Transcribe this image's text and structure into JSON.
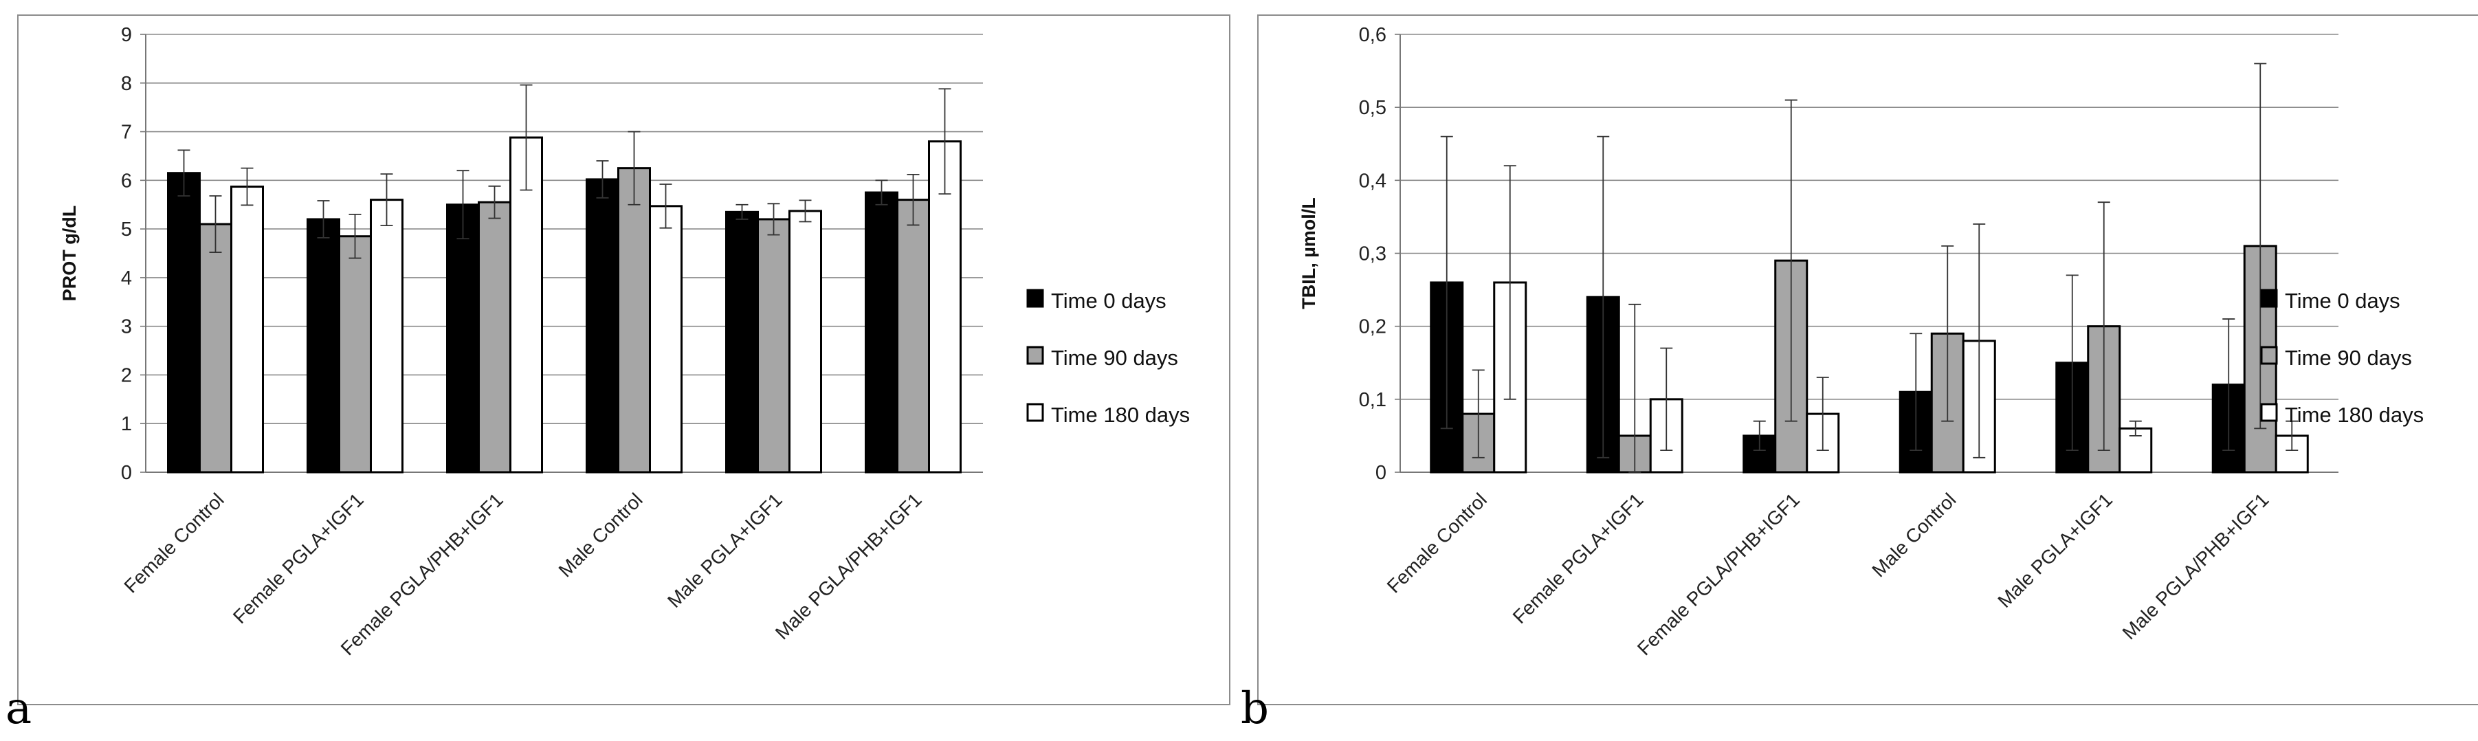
{
  "panels": {
    "a": {
      "label": "a"
    },
    "b": {
      "label": "b"
    }
  },
  "chart_data": [
    {
      "id": "a",
      "type": "bar",
      "title": "",
      "xlabel": "",
      "ylabel": "PROT g/dL",
      "ylim": [
        0,
        9
      ],
      "yticks": [
        0,
        1,
        2,
        3,
        4,
        5,
        6,
        7,
        8,
        9
      ],
      "ytick_labels": [
        "0",
        "1",
        "2",
        "3",
        "4",
        "5",
        "6",
        "7",
        "8",
        "9"
      ],
      "grid": true,
      "legend_position": "right",
      "categories": [
        "Female Control",
        "Female PGLA+IGF1",
        "Female PGLA/PHB+IGF1",
        "Male Control",
        "Male PGLA+IGF1",
        "Male PGLA/PHB+IGF1"
      ],
      "series": [
        {
          "name": "Time 0 days",
          "color": "#000000",
          "values": [
            6.15,
            5.2,
            5.5,
            6.02,
            5.35,
            5.75
          ],
          "errors": [
            0.47,
            0.38,
            0.7,
            0.38,
            0.15,
            0.25
          ]
        },
        {
          "name": "Time 90 days",
          "color": "#a6a6a6",
          "values": [
            5.1,
            4.85,
            5.55,
            6.25,
            5.2,
            5.6
          ],
          "errors": [
            0.58,
            0.45,
            0.33,
            0.75,
            0.32,
            0.52
          ]
        },
        {
          "name": "Time 180 days",
          "color": "#ffffff",
          "values": [
            5.87,
            5.6,
            6.88,
            5.47,
            5.37,
            6.8
          ],
          "errors": [
            0.38,
            0.53,
            1.08,
            0.45,
            0.22,
            1.08
          ]
        }
      ]
    },
    {
      "id": "b",
      "type": "bar",
      "title": "",
      "xlabel": "",
      "ylabel": "TBIL, µmol/L",
      "ylim": [
        0,
        0.6
      ],
      "yticks": [
        0,
        0.1,
        0.2,
        0.3,
        0.4,
        0.5,
        0.6
      ],
      "ytick_labels": [
        "0",
        "0,1",
        "0,2",
        "0,3",
        "0,4",
        "0,5",
        "0,6"
      ],
      "grid": true,
      "legend_position": "right",
      "categories": [
        "Female Control",
        "Female PGLA+IGF1",
        "Female PGLA/PHB+IGF1",
        "Male Control",
        "Male PGLA+IGF1",
        "Male PGLA/PHB+IGF1"
      ],
      "series": [
        {
          "name": "Time 0 days",
          "color": "#000000",
          "values": [
            0.26,
            0.24,
            0.05,
            0.11,
            0.15,
            0.12
          ],
          "errors": [
            0.2,
            0.22,
            0.02,
            0.08,
            0.12,
            0.09
          ]
        },
        {
          "name": "Time 90 days",
          "color": "#a6a6a6",
          "values": [
            0.08,
            0.05,
            0.29,
            0.19,
            0.2,
            0.31
          ],
          "errors": [
            0.06,
            0.18,
            0.22,
            0.12,
            0.17,
            0.25
          ]
        },
        {
          "name": "Time 180 days",
          "color": "#ffffff",
          "values": [
            0.26,
            0.1,
            0.08,
            0.18,
            0.06,
            0.05
          ],
          "errors": [
            0.16,
            0.07,
            0.05,
            0.16,
            0.01,
            0.02
          ]
        }
      ]
    }
  ]
}
